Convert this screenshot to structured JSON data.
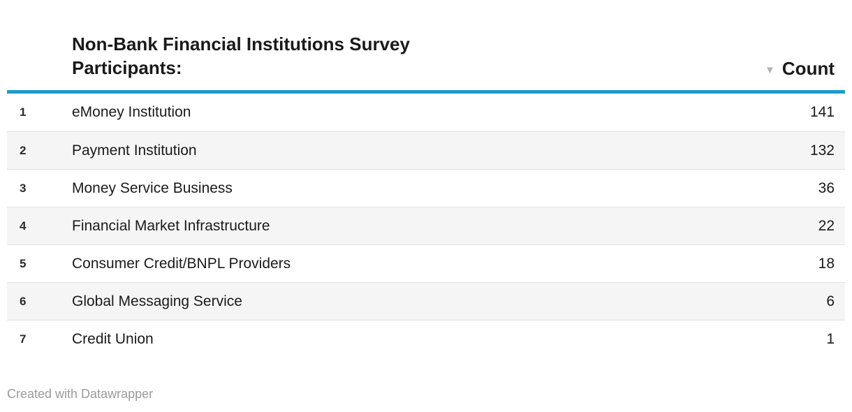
{
  "header": {
    "title": "Non-Bank Financial Institutions Survey Participants:",
    "count_column": {
      "label": "Count",
      "sort_icon": "▼",
      "sort_direction": "descending"
    }
  },
  "table": {
    "rows": [
      {
        "index": "1",
        "name": "eMoney Institution",
        "count": "141"
      },
      {
        "index": "2",
        "name": "Payment Institution",
        "count": "132"
      },
      {
        "index": "3",
        "name": "Money Service Business",
        "count": "36"
      },
      {
        "index": "4",
        "name": "Financial Market Infrastructure",
        "count": "22"
      },
      {
        "index": "5",
        "name": "Consumer Credit/BNPL Providers",
        "count": "18"
      },
      {
        "index": "6",
        "name": "Global Messaging Service",
        "count": "6"
      },
      {
        "index": "7",
        "name": "Credit Union",
        "count": "1"
      }
    ]
  },
  "footer": {
    "credit": "Created with Datawrapper"
  },
  "colors": {
    "accent_rule": "#1d9bc9",
    "stripe": "#f5f5f5",
    "row_border": "#e3e3e3",
    "text": "#1a1a1a",
    "muted_text": "#9b9b9b",
    "sort_arrow": "#b5b5b5"
  }
}
